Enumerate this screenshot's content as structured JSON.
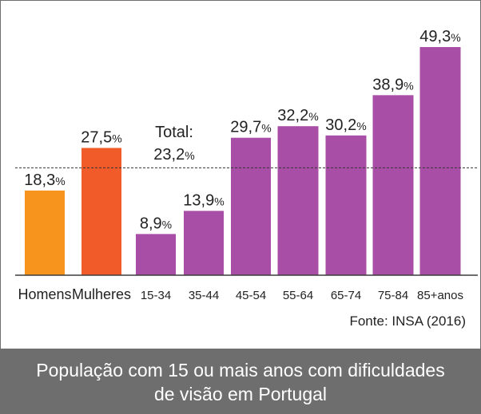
{
  "chart_data": {
    "type": "bar",
    "categories": [
      "Homens",
      "Mulheres",
      "15-34",
      "35-44",
      "45-54",
      "55-64",
      "65-74",
      "75-84",
      "85+anos"
    ],
    "values": [
      18.3,
      27.5,
      8.9,
      13.9,
      29.7,
      32.2,
      30.2,
      38.9,
      49.3
    ],
    "value_labels": [
      "18,3",
      "27,5",
      "8,9",
      "13,9",
      "29,7",
      "32,2",
      "30,2",
      "38,9",
      "49,3"
    ],
    "value_unit": "%",
    "bar_colors": [
      "#f7941d",
      "#f15a29",
      "#a94ea6",
      "#a94ea6",
      "#a94ea6",
      "#a94ea6",
      "#a94ea6",
      "#a94ea6",
      "#a94ea6"
    ],
    "reference_line": {
      "value": 23.2,
      "label_line1": "Total:",
      "label_line2": "23,2",
      "style": "dashed"
    },
    "source": "Fonte: INSA (2016)",
    "title_line1": "População com 15 ou mais anos com dificuldades",
    "title_line2": "de visão em Portugal",
    "ylim": [
      0,
      49.3
    ],
    "grid": false
  }
}
